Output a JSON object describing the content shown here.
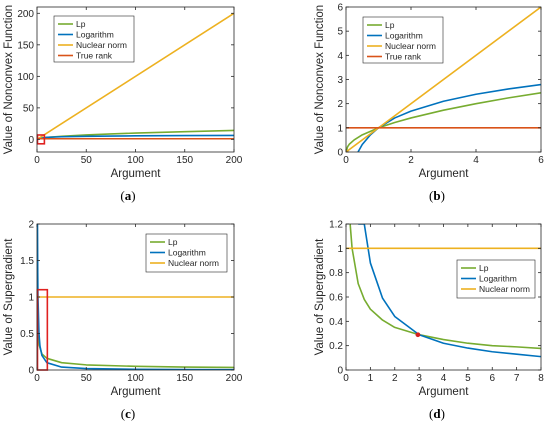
{
  "colors": {
    "lp": "#77AC30",
    "logarithm": "#0072BD",
    "nuclear": "#EDB120",
    "truerank": "#D95319",
    "highlight": "#E0211F",
    "marker": "#D62020"
  },
  "chart_data": [
    {
      "type": "line",
      "panel": "a",
      "caption": "a",
      "xlabel": "Argument",
      "ylabel": "Value of Nonconvex Function",
      "xlim": [
        0,
        200
      ],
      "ylim": [
        -20,
        210
      ],
      "xticks": [
        0,
        50,
        100,
        150,
        200
      ],
      "yticks": [
        0,
        50,
        100,
        150,
        200
      ],
      "xtick_labels": [
        "0",
        "50",
        "100",
        "150",
        "200"
      ],
      "ytick_labels": [
        "0",
        "50",
        "100",
        "150",
        "200"
      ],
      "legend_placement": "top-left",
      "series": [
        {
          "name": "Lp",
          "color_key": "lp",
          "x": [
            0,
            1,
            10,
            25,
            50,
            75,
            100,
            150,
            200
          ],
          "y": [
            0,
            1,
            3.16,
            5,
            7.07,
            8.66,
            10,
            12.25,
            14.14
          ]
        },
        {
          "name": "Logarithm",
          "color_key": "logarithm",
          "x": [
            0.37,
            1,
            10,
            25,
            50,
            75,
            100,
            150,
            200
          ],
          "y": [
            0,
            1,
            3.3,
            4.2,
            4.9,
            5.3,
            5.6,
            6,
            6.3
          ]
        },
        {
          "name": "Nuclear norm",
          "color_key": "nuclear",
          "x": [
            0,
            200
          ],
          "y": [
            0,
            200
          ]
        },
        {
          "name": "True rank",
          "color_key": "truerank",
          "x": [
            0,
            200
          ],
          "y": [
            1,
            1
          ]
        }
      ],
      "highlight_box": {
        "x": [
          0,
          7
        ],
        "y": [
          -7,
          7
        ]
      }
    },
    {
      "type": "line",
      "panel": "b",
      "caption": "b",
      "xlabel": "Argument",
      "ylabel": "Value of Nonconvex Function",
      "xlim": [
        0,
        6
      ],
      "ylim": [
        0,
        6
      ],
      "xticks": [
        0,
        2,
        4,
        6
      ],
      "yticks": [
        0,
        1,
        2,
        3,
        4,
        5,
        6
      ],
      "xtick_labels": [
        "0",
        "2",
        "4",
        "6"
      ],
      "ytick_labels": [
        "0",
        "1",
        "2",
        "3",
        "4",
        "5",
        "6"
      ],
      "legend_placement": "top-left",
      "series": [
        {
          "name": "Lp",
          "color_key": "lp",
          "x": [
            0,
            0.05,
            0.1,
            0.25,
            0.5,
            1,
            1.5,
            2,
            3,
            4,
            5,
            6
          ],
          "y": [
            0,
            0.22,
            0.32,
            0.5,
            0.71,
            1,
            1.22,
            1.41,
            1.73,
            2,
            2.24,
            2.45
          ]
        },
        {
          "name": "Logarithm",
          "color_key": "logarithm",
          "x": [
            0.37,
            0.5,
            0.75,
            1,
            1.5,
            2,
            3,
            4,
            5,
            6
          ],
          "y": [
            0,
            0.31,
            0.71,
            1,
            1.41,
            1.69,
            2.1,
            2.39,
            2.61,
            2.79
          ]
        },
        {
          "name": "Nuclear norm",
          "color_key": "nuclear",
          "x": [
            0,
            6
          ],
          "y": [
            0,
            6
          ]
        },
        {
          "name": "True rank",
          "color_key": "truerank",
          "x": [
            0,
            6
          ],
          "y": [
            1,
            1
          ]
        }
      ]
    },
    {
      "type": "line",
      "panel": "c",
      "caption": "c",
      "xlabel": "Argument",
      "ylabel": "Value of Supergradient",
      "xlim": [
        0,
        200
      ],
      "ylim": [
        0,
        2
      ],
      "xticks": [
        0,
        50,
        100,
        150,
        200
      ],
      "yticks": [
        0,
        0.5,
        1,
        1.5,
        2
      ],
      "xtick_labels": [
        "0",
        "50",
        "100",
        "150",
        "200"
      ],
      "ytick_labels": [
        "0",
        "0.5",
        "1",
        "1.5",
        "2"
      ],
      "legend_placement": "top-right",
      "series": [
        {
          "name": "Lp",
          "color_key": "lp",
          "x": [
            0.06,
            0.2,
            0.5,
            1,
            2,
            5,
            10,
            25,
            50,
            100,
            150,
            200
          ],
          "y": [
            2,
            1.12,
            0.71,
            0.5,
            0.35,
            0.22,
            0.16,
            0.1,
            0.07,
            0.05,
            0.04,
            0.035
          ]
        },
        {
          "name": "Logarithm",
          "color_key": "logarithm",
          "x": [
            0.5,
            0.75,
            1,
            2,
            3,
            5,
            10,
            25,
            50,
            100,
            150,
            200
          ],
          "y": [
            2,
            1.33,
            1,
            0.5,
            0.33,
            0.2,
            0.1,
            0.04,
            0.02,
            0.01,
            0.007,
            0.005
          ]
        },
        {
          "name": "Nuclear norm",
          "color_key": "nuclear",
          "x": [
            0,
            200
          ],
          "y": [
            1,
            1
          ]
        }
      ],
      "highlight_box": {
        "x": [
          0,
          10
        ],
        "y": [
          0,
          1.1
        ]
      }
    },
    {
      "type": "line",
      "panel": "d",
      "caption": "d",
      "xlabel": "Argument",
      "ylabel": "Value of Supergradient",
      "xlim": [
        0,
        8
      ],
      "ylim": [
        0,
        1.2
      ],
      "xticks": [
        0,
        1,
        2,
        3,
        4,
        5,
        6,
        7,
        8
      ],
      "yticks": [
        0,
        0.2,
        0.4,
        0.6,
        0.8,
        1,
        1.2
      ],
      "xtick_labels": [
        "0",
        "1",
        "2",
        "3",
        "4",
        "5",
        "6",
        "7",
        "8"
      ],
      "ytick_labels": [
        "0",
        "0.2",
        "0.4",
        "0.6",
        "0.8",
        "1",
        "1.2"
      ],
      "legend_placement": "right",
      "series": [
        {
          "name": "Lp",
          "color_key": "lp",
          "x": [
            0.17,
            0.25,
            0.5,
            0.75,
            1,
            1.5,
            2,
            3,
            4,
            5,
            6,
            7,
            8
          ],
          "y": [
            1.2,
            1,
            0.71,
            0.58,
            0.5,
            0.41,
            0.35,
            0.29,
            0.25,
            0.22,
            0.2,
            0.19,
            0.177
          ]
        },
        {
          "name": "Logarithm",
          "color_key": "logarithm",
          "x": [
            0.5,
            0.6,
            0.75,
            1,
            1.5,
            2,
            3,
            4,
            5,
            6,
            7,
            8
          ],
          "y": [
            1.2,
            1.2,
            1.2,
            0.88,
            0.59,
            0.44,
            0.29,
            0.22,
            0.18,
            0.15,
            0.13,
            0.11
          ]
        },
        {
          "name": "Nuclear norm",
          "color_key": "nuclear",
          "x": [
            0,
            8
          ],
          "y": [
            1,
            1
          ]
        }
      ],
      "marker": {
        "x": 2.95,
        "y": 0.29
      }
    }
  ]
}
